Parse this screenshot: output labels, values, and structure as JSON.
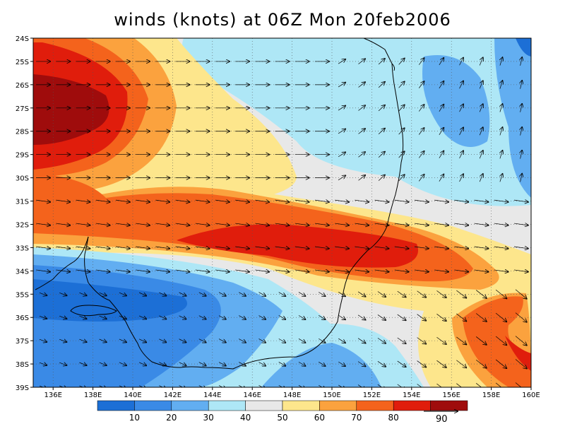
{
  "title": "winds (knots) at 06Z Mon 20feb2006",
  "map": {
    "lat_labels": [
      "24S",
      "25S",
      "26S",
      "27S",
      "28S",
      "29S",
      "30S",
      "31S",
      "32S",
      "33S",
      "34S",
      "35S",
      "36S",
      "37S",
      "38S",
      "39S"
    ],
    "lon_labels": [
      "136E",
      "138E",
      "140E",
      "142E",
      "144E",
      "146E",
      "148E",
      "150E",
      "152E",
      "154E",
      "156E",
      "158E",
      "160E"
    ],
    "lat_range": [
      -39,
      -24
    ],
    "lon_range": [
      135,
      160
    ]
  },
  "colorbar": {
    "labels": [
      "10",
      "20",
      "30",
      "40",
      "50",
      "60",
      "70",
      "80"
    ],
    "colors": [
      "#1c6fd6",
      "#3a8ae6",
      "#62aef1",
      "#aee7f6",
      "#e8e8e8",
      "#fde68c",
      "#fba23e",
      "#f4631c",
      "#e01d0c",
      "#9f0c0c"
    ]
  },
  "vector_ref": {
    "label": "90"
  }
}
